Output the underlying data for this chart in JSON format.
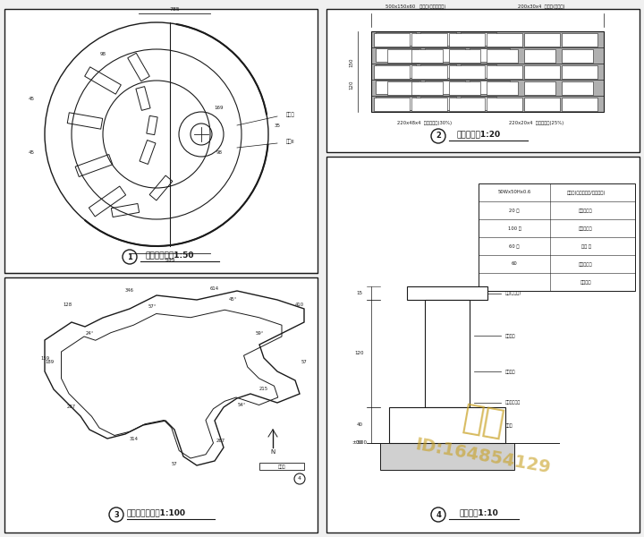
{
  "bg_color": "#f0f0f0",
  "panel_bg": "#ffffff",
  "line_color": "#404040",
  "dark_line": "#1a1a1a",
  "gray_fill": "#b0b0b0",
  "light_gray": "#d0d0d0",
  "text_color": "#1a1a1a",
  "watermark_color": "#c8a020",
  "panel1_title": "读书角平面图1:50",
  "panel2_title": "坐凳立面图1:20",
  "panel3_title": "山图平台平面图1:100",
  "panel4_title": "坐凳做法1:10",
  "label1": "1",
  "label2": "2",
  "label3": "3",
  "label4": "4",
  "watermark_text1": "知末",
  "watermark_text2": "ID:164854129"
}
